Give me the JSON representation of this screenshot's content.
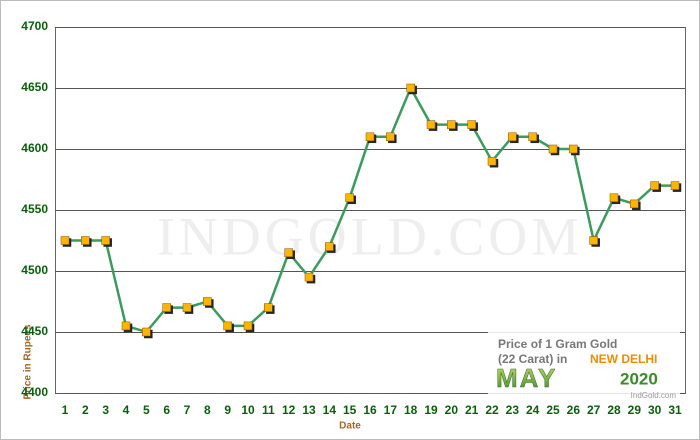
{
  "chart_data": {
    "type": "line",
    "categories": [
      "1",
      "2",
      "3",
      "4",
      "5",
      "6",
      "7",
      "8",
      "9",
      "10",
      "11",
      "12",
      "13",
      "14",
      "15",
      "16",
      "17",
      "18",
      "19",
      "20",
      "21",
      "22",
      "23",
      "24",
      "25",
      "26",
      "27",
      "28",
      "29",
      "30",
      "31"
    ],
    "values": [
      4525,
      4525,
      4525,
      4455,
      4450,
      4470,
      4470,
      4475,
      4455,
      4455,
      4470,
      4515,
      4495,
      4520,
      4560,
      4610,
      4610,
      4650,
      4620,
      4620,
      4620,
      4590,
      4610,
      4610,
      4600,
      4600,
      4525,
      4560,
      4555,
      4570,
      4570
    ],
    "color": "#3c9a5c",
    "marker_color": "#ffb400",
    "ylim": [
      4400,
      4700
    ],
    "yticks": [
      4400,
      4450,
      4500,
      4550,
      4600,
      4650,
      4700
    ],
    "grid": true,
    "x_label": "Date",
    "y_label": "Price in Rupees",
    "watermark": "INDGOLD.COM",
    "annotation": {
      "line1": "Price of 1 Gram Gold",
      "line2": "(22 Carat) in",
      "city": "NEW DELHI",
      "month": "MAY",
      "year": "2020",
      "credit": "IndGold.com"
    }
  }
}
